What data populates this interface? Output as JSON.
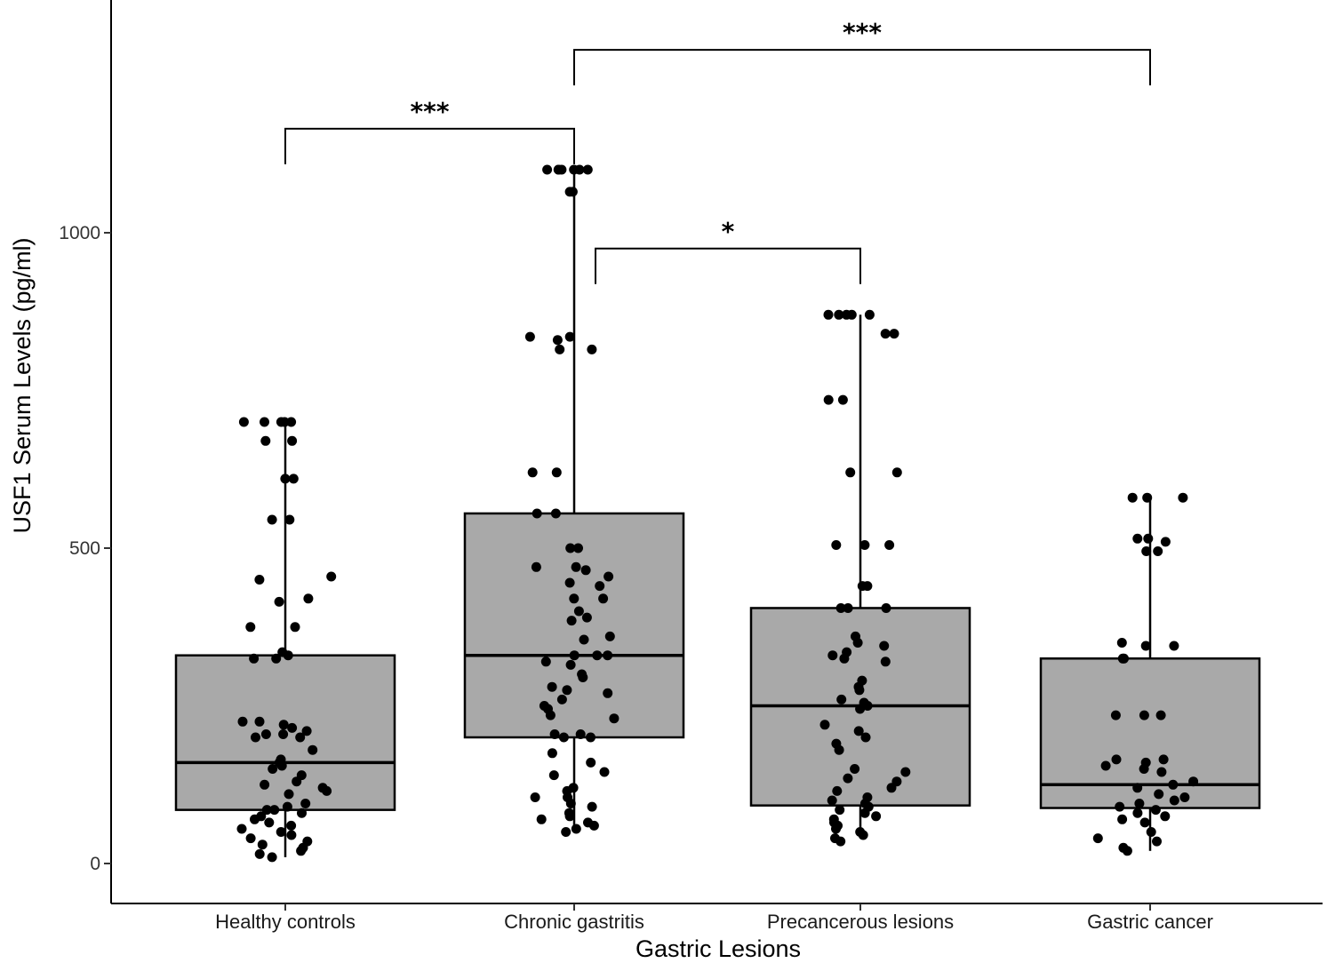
{
  "chart_data": {
    "type": "box",
    "title": "",
    "xlabel": "Gastric Lesions",
    "ylabel": "USF1 Serum Levels (pg/ml)",
    "ylim": [
      -60,
      1370
    ],
    "yticks": [
      0,
      500,
      1000
    ],
    "ytick_labels": [
      "0",
      "500",
      "1000"
    ],
    "grid": false,
    "legend": "none",
    "colors": {
      "box_fill": "#a9a9a9",
      "stroke": "#000000",
      "point": "#000000"
    },
    "categories": [
      "Healthy controls",
      "Chronic gastritis",
      "Precancerous lesions",
      "Gastric cancer"
    ],
    "boxes": [
      {
        "category": "Healthy controls",
        "whisker_low": 10,
        "q1": 85,
        "median": 160,
        "q3": 330,
        "whisker_high": 700
      },
      {
        "category": "Chronic gastritis",
        "whisker_low": 50,
        "q1": 200,
        "median": 330,
        "q3": 555,
        "whisker_high": 1100
      },
      {
        "category": "Precancerous lesions",
        "whisker_low": 40,
        "q1": 92,
        "median": 250,
        "q3": 405,
        "whisker_high": 870
      },
      {
        "category": "Gastric cancer",
        "whisker_low": 20,
        "q1": 88,
        "median": 125,
        "q3": 325,
        "whisker_high": 580
      }
    ],
    "points": [
      {
        "category": "Healthy controls",
        "values": [
          700,
          700,
          700,
          700,
          700,
          670,
          670,
          610,
          610,
          545,
          545,
          455,
          450,
          420,
          415,
          375,
          375,
          335,
          330,
          325,
          325,
          225,
          225,
          220,
          215,
          210,
          205,
          205,
          200,
          200,
          180,
          165,
          160,
          155,
          150,
          130,
          125,
          120,
          115,
          95,
          90,
          85,
          85,
          80,
          75,
          70,
          60,
          55,
          50,
          45,
          40,
          35,
          30,
          25,
          20,
          15,
          10,
          65,
          110,
          140
        ]
      },
      {
        "category": "Chronic gastritis",
        "values": [
          1100,
          1100,
          1100,
          1100,
          1100,
          1100,
          1100,
          1065,
          1065,
          835,
          835,
          830,
          815,
          815,
          620,
          620,
          555,
          555,
          500,
          500,
          470,
          470,
          465,
          455,
          445,
          440,
          420,
          420,
          400,
          390,
          385,
          360,
          355,
          330,
          330,
          330,
          320,
          315,
          300,
          295,
          280,
          275,
          270,
          250,
          245,
          235,
          205,
          205,
          200,
          200,
          145,
          140,
          120,
          115,
          105,
          105,
          95,
          90,
          80,
          75,
          70,
          65,
          55,
          50,
          160,
          175,
          230,
          260,
          60
        ]
      },
      {
        "category": "Precancerous lesions",
        "values": [
          870,
          870,
          870,
          870,
          870,
          840,
          840,
          735,
          735,
          620,
          620,
          505,
          505,
          505,
          440,
          440,
          405,
          405,
          405,
          360,
          350,
          345,
          335,
          330,
          325,
          320,
          290,
          280,
          275,
          260,
          255,
          250,
          245,
          220,
          210,
          200,
          190,
          150,
          145,
          135,
          130,
          120,
          105,
          100,
          95,
          90,
          85,
          80,
          75,
          70,
          60,
          55,
          50,
          45,
          40,
          35,
          180,
          115,
          65
        ]
      },
      {
        "category": "Gastric cancer",
        "values": [
          580,
          580,
          580,
          515,
          515,
          510,
          495,
          495,
          350,
          345,
          345,
          325,
          325,
          235,
          235,
          235,
          165,
          165,
          160,
          155,
          150,
          145,
          130,
          125,
          120,
          105,
          100,
          95,
          90,
          85,
          80,
          70,
          65,
          50,
          40,
          35,
          25,
          20,
          110,
          75
        ]
      }
    ],
    "significance": [
      {
        "label": "***",
        "from": "Healthy controls",
        "to": "Chronic gastritis",
        "level": 1165
      },
      {
        "label": "***",
        "from": "Chronic gastritis",
        "to": "Gastric cancer",
        "level": 1290
      },
      {
        "label": "*",
        "from": "Chronic gastritis",
        "to": "Precancerous lesions",
        "level": 975
      }
    ]
  }
}
